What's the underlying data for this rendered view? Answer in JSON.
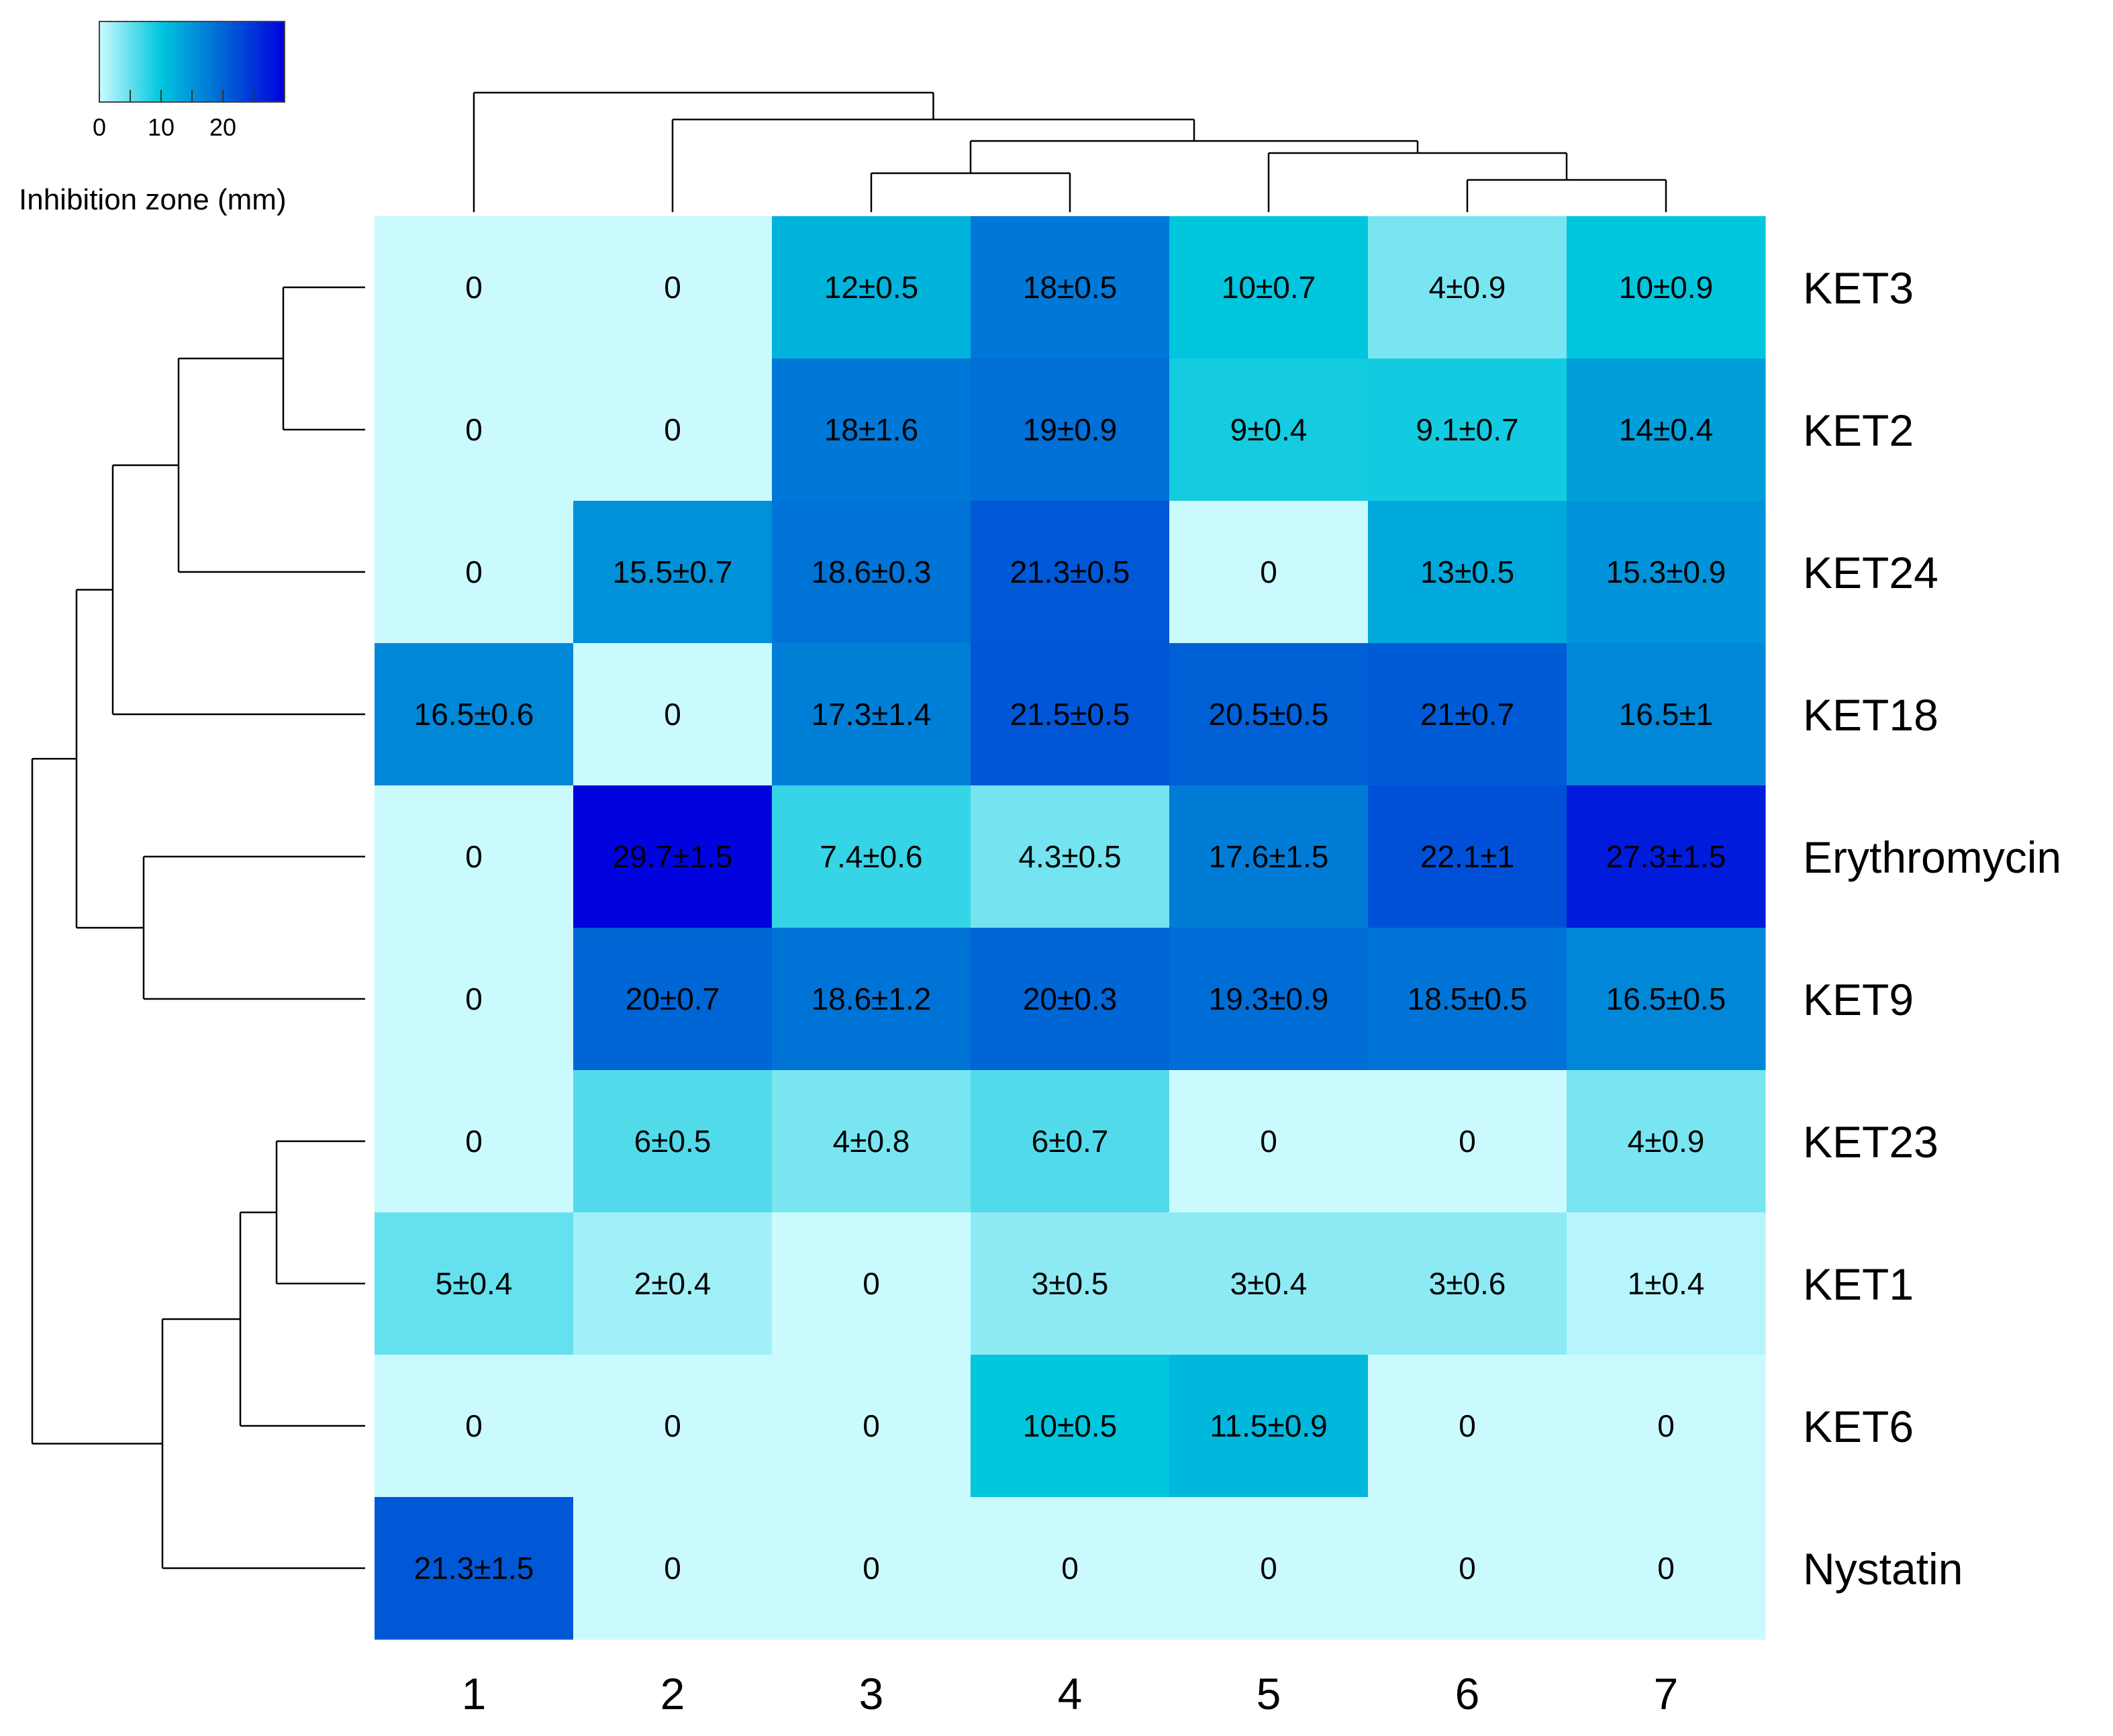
{
  "chart_data": {
    "type": "heatmap",
    "title": "",
    "columns": [
      "1",
      "2",
      "3",
      "4",
      "5",
      "6",
      "7"
    ],
    "rows": [
      "KET3",
      "KET2",
      "KET24",
      "KET18",
      "Erythromycin",
      "KET9",
      "KET23",
      "KET1",
      "KET6",
      "Nystatin"
    ],
    "values": [
      [
        0,
        0,
        12,
        18,
        10,
        4,
        10
      ],
      [
        0,
        0,
        18,
        19,
        9,
        9.1,
        14
      ],
      [
        0,
        15.5,
        18.6,
        21.3,
        0,
        13,
        15.3
      ],
      [
        16.5,
        0,
        17.3,
        21.5,
        20.5,
        21,
        16.5
      ],
      [
        0,
        29.7,
        7.4,
        4.3,
        17.6,
        22.1,
        27.3
      ],
      [
        0,
        20,
        18.6,
        20,
        19.3,
        18.5,
        16.5
      ],
      [
        0,
        6,
        4,
        6,
        0,
        0,
        4
      ],
      [
        5,
        2,
        0,
        3,
        3,
        3,
        1
      ],
      [
        0,
        0,
        0,
        10,
        11.5,
        0,
        0
      ],
      [
        21.3,
        0,
        0,
        0,
        0,
        0,
        0
      ]
    ],
    "labels": [
      [
        "0",
        "0",
        "12±0.5",
        "18±0.5",
        "10±0.7",
        "4±0.9",
        "10±0.9"
      ],
      [
        "0",
        "0",
        "18±1.6",
        "19±0.9",
        "9±0.4",
        "9.1±0.7",
        "14±0.4"
      ],
      [
        "0",
        "15.5±0.7",
        "18.6±0.3",
        "21.3±0.5",
        "0",
        "13±0.5",
        "15.3±0.9"
      ],
      [
        "16.5±0.6",
        "0",
        "17.3±1.4",
        "21.5±0.5",
        "20.5±0.5",
        "21±0.7",
        "16.5±1"
      ],
      [
        "0",
        "29.7±1.5",
        "7.4±0.6",
        "4.3±0.5",
        "17.6±1.5",
        "22.1±1",
        "27.3±1.5"
      ],
      [
        "0",
        "20±0.7",
        "18.6±1.2",
        "20±0.3",
        "19.3±0.9",
        "18.5±0.5",
        "16.5±0.5"
      ],
      [
        "0",
        "6±0.5",
        "4±0.8",
        "6±0.7",
        "0",
        "0",
        "4±0.9"
      ],
      [
        "5±0.4",
        "2±0.4",
        "0",
        "3±0.5",
        "3±0.4",
        "3±0.6",
        "1±0.4"
      ],
      [
        "0",
        "0",
        "0",
        "10±0.5",
        "11.5±0.9",
        "0",
        "0"
      ],
      [
        "21.3±1.5",
        "0",
        "0",
        "0",
        "0",
        "0",
        "0"
      ]
    ],
    "color_scale": {
      "min": 0,
      "max": 30,
      "stops": [
        "#cafafe",
        "#00c6dd",
        "#0065d5",
        "#0000dd"
      ],
      "title": "Inhibition zone (mm)",
      "ticks": [
        0,
        10,
        20
      ],
      "tick_labels": [
        "0",
        "10",
        "20"
      ]
    },
    "column_dendrogram": [
      {
        "merge": [
          "3",
          "4"
        ]
      },
      {
        "merge": [
          "6",
          "7"
        ]
      },
      {
        "merge": [
          "5",
          "6,7"
        ]
      },
      {
        "merge": [
          "3,4",
          "5,6,7"
        ]
      },
      {
        "merge": [
          "2",
          "3,4,5,6,7"
        ]
      },
      {
        "merge": [
          "1",
          "2,3,4,5,6,7"
        ]
      }
    ],
    "row_dendrogram": [
      {
        "merge": [
          "KET3",
          "KET2"
        ]
      },
      {
        "merge": [
          "KET3,KET2",
          "KET24"
        ]
      },
      {
        "merge": [
          "KET3,KET2,KET24",
          "KET18"
        ]
      },
      {
        "merge": [
          "Erythromycin",
          "KET9"
        ]
      },
      {
        "merge": [
          "KET3,KET2,KET24,KET18",
          "Erythromycin,KET9"
        ]
      },
      {
        "merge": [
          "KET23",
          "KET1"
        ]
      },
      {
        "merge": [
          "KET23,KET1",
          "KET6"
        ]
      },
      {
        "merge": [
          "KET23,KET1,KET6",
          "Nystatin"
        ]
      },
      {
        "merge": [
          "upper",
          "lower"
        ]
      }
    ]
  }
}
